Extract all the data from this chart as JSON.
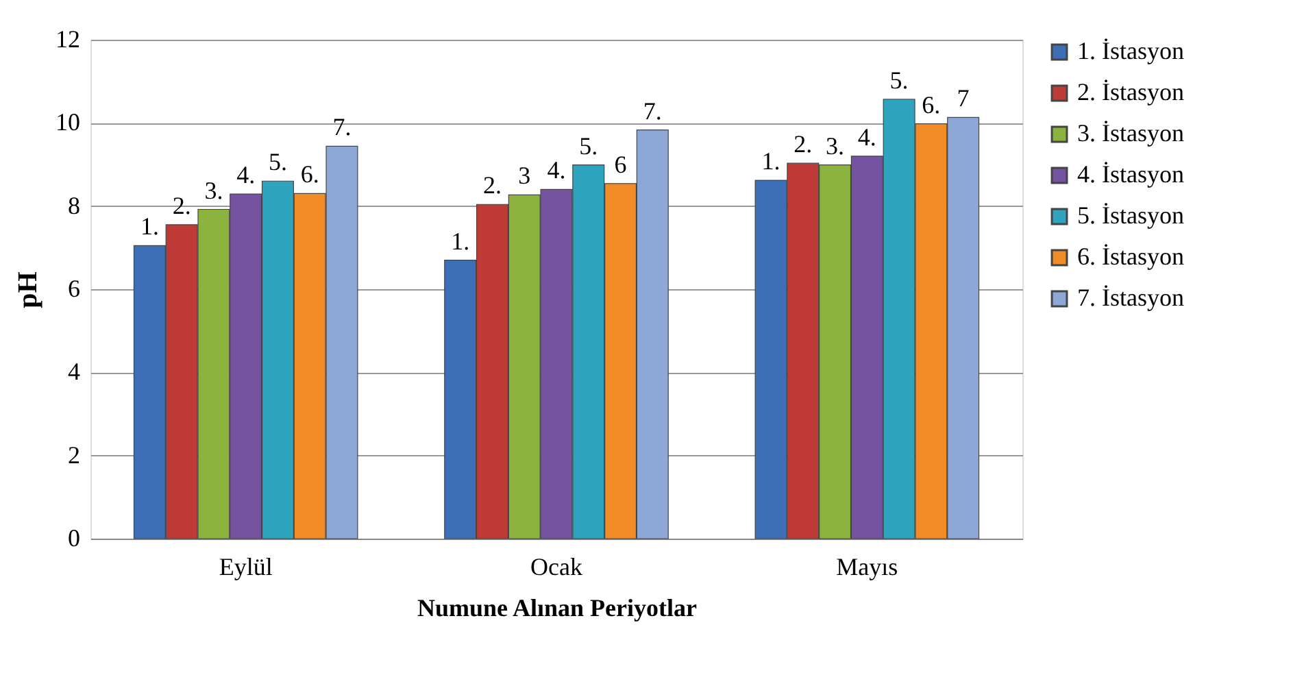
{
  "chart_data": {
    "type": "bar",
    "xlabel": "Numune Alınan Periyotlar",
    "ylabel": "pH",
    "categories": [
      "Eylül",
      "Ocak",
      "Mayıs"
    ],
    "ylim": [
      0,
      12
    ],
    "yticks": [
      0,
      2,
      4,
      6,
      8,
      10,
      12
    ],
    "grid": "y",
    "legend": "right",
    "series": [
      {
        "name": "1. İstasyon",
        "color": "#3d6fb6",
        "values": [
          7.05,
          6.7,
          8.62
        ]
      },
      {
        "name": "2. İstasyon",
        "color": "#be3a36",
        "values": [
          7.55,
          8.04,
          9.03
        ]
      },
      {
        "name": "3. İstasyon",
        "color": "#8db33f",
        "values": [
          7.92,
          8.27,
          8.99
        ]
      },
      {
        "name": "4. İstasyon",
        "color": "#7454a0",
        "values": [
          8.29,
          8.4,
          9.2
        ]
      },
      {
        "name": "5. İstasyon",
        "color": "#2ea4be",
        "values": [
          8.6,
          8.99,
          10.57
        ]
      },
      {
        "name": "6. İstasyon",
        "color": "#f28c26",
        "values": [
          8.3,
          8.54,
          9.98
        ]
      },
      {
        "name": "7. İstasyon",
        "color": "#8da8d6",
        "values": [
          9.44,
          9.83,
          10.13
        ]
      }
    ],
    "annotations": [
      "1.",
      "2.",
      "3.",
      "4.",
      "5.",
      "6.",
      "7.",
      "1.",
      "2.",
      "3",
      "4.",
      "5.",
      "6",
      "7.",
      "1.",
      "2.",
      "3.",
      "4.",
      "5.",
      "6.",
      "7"
    ]
  }
}
